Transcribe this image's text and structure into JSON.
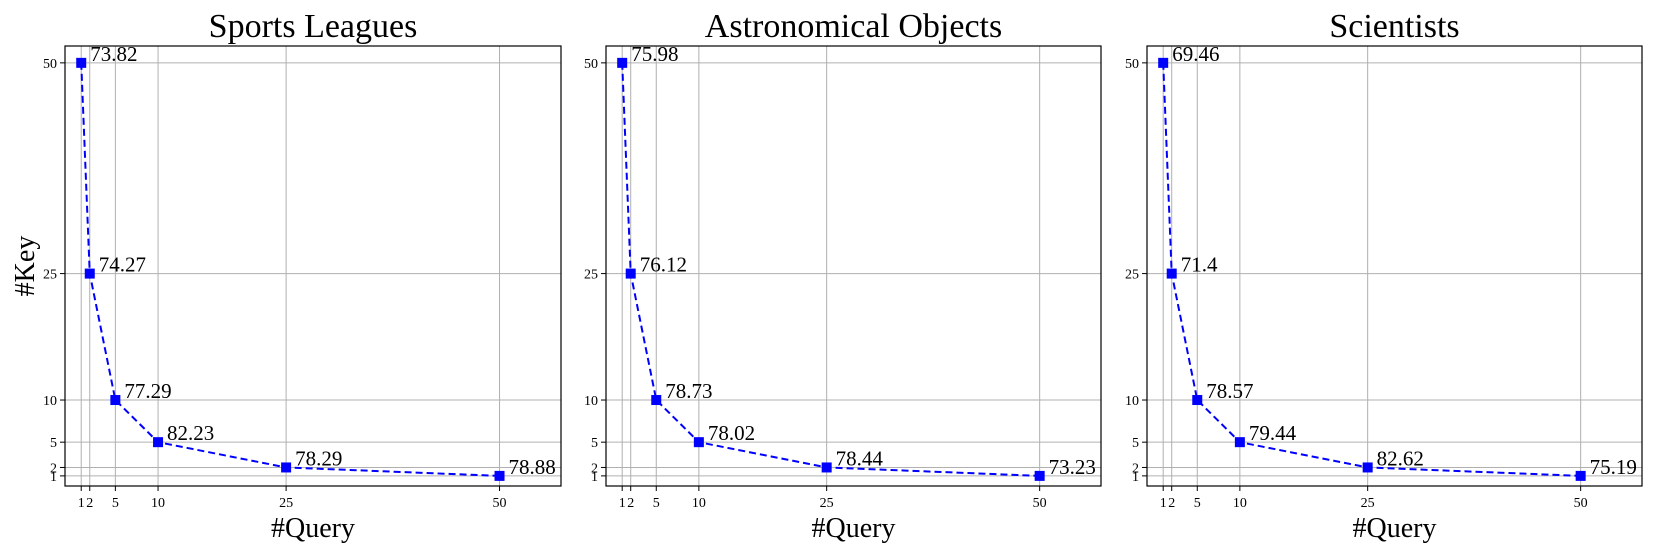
{
  "chart_data": [
    {
      "type": "line",
      "title": "Sports Leagues",
      "xlabel": "#Query",
      "ylabel": "#Key",
      "x": [
        1,
        2,
        5,
        10,
        25,
        50
      ],
      "y": [
        50,
        25,
        10,
        5,
        2,
        1
      ],
      "value_labels": [
        "73.82",
        "74.27",
        "77.29",
        "82.23",
        "78.29",
        "78.88"
      ],
      "xticks": [
        1,
        2,
        5,
        10,
        25,
        50
      ],
      "xtick_labels": [
        "1",
        "2",
        "5",
        "10",
        "25",
        "50"
      ],
      "yticks": [
        1,
        2,
        5,
        10,
        25,
        50
      ],
      "ytick_labels": [
        "1",
        "2",
        "5",
        "10",
        "25",
        "50"
      ],
      "xlim": [
        -0.9,
        57.2
      ],
      "ylim": [
        -0.2,
        52
      ],
      "grid": true,
      "line_style": "dashed",
      "marker": "square",
      "color": "#0000ff"
    },
    {
      "type": "line",
      "title": "Astronomical Objects",
      "xlabel": "#Query",
      "ylabel": "",
      "x": [
        1,
        2,
        5,
        10,
        25,
        50
      ],
      "y": [
        50,
        25,
        10,
        5,
        2,
        1
      ],
      "value_labels": [
        "75.98",
        "76.12",
        "78.73",
        "78.02",
        "78.44",
        "73.23"
      ],
      "xticks": [
        1,
        2,
        5,
        10,
        25,
        50
      ],
      "xtick_labels": [
        "1",
        "2",
        "5",
        "10",
        "25",
        "50"
      ],
      "yticks": [
        1,
        2,
        5,
        10,
        25,
        50
      ],
      "ytick_labels": [
        "1",
        "2",
        "5",
        "10",
        "25",
        "50"
      ],
      "xlim": [
        -0.9,
        57.2
      ],
      "ylim": [
        -0.2,
        52
      ],
      "grid": true,
      "line_style": "dashed",
      "marker": "square",
      "color": "#0000ff"
    },
    {
      "type": "line",
      "title": "Scientists",
      "xlabel": "#Query",
      "ylabel": "",
      "x": [
        1,
        2,
        5,
        10,
        25,
        50
      ],
      "y": [
        50,
        25,
        10,
        5,
        2,
        1
      ],
      "value_labels": [
        "69.46",
        "71.4",
        "78.57",
        "79.44",
        "82.62",
        "75.19"
      ],
      "xticks": [
        1,
        2,
        5,
        10,
        25,
        50
      ],
      "xtick_labels": [
        "1",
        "2",
        "5",
        "10",
        "25",
        "50"
      ],
      "yticks": [
        1,
        2,
        5,
        10,
        25,
        50
      ],
      "ytick_labels": [
        "1",
        "2",
        "5",
        "10",
        "25",
        "50"
      ],
      "xlim": [
        -0.9,
        57.2
      ],
      "ylim": [
        -0.2,
        52
      ],
      "grid": true,
      "line_style": "dashed",
      "marker": "square",
      "color": "#0000ff"
    }
  ]
}
